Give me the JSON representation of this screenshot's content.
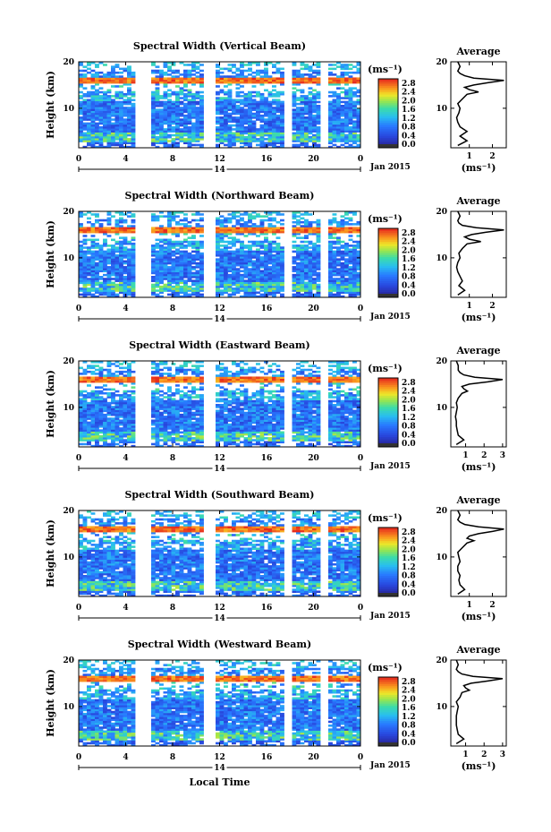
{
  "chart_data": [
    {
      "type": "heatmap",
      "title": "Spectral Width (Vertical Beam)",
      "ylabel": "Height (km)",
      "x_ticks": [
        "0",
        "4",
        "8",
        "12",
        "16",
        "20",
        "0"
      ],
      "y_ticks": [
        "10",
        "20"
      ],
      "date_label": "14",
      "month_label": "Jan 2015",
      "xlim": [
        0,
        24
      ],
      "ylim": [
        1.5,
        20
      ],
      "colorbar": {
        "unit": "(ms⁻¹)",
        "ticks": [
          "0.0",
          "0.4",
          "0.8",
          "1.2",
          "1.6",
          "2.0",
          "2.4",
          "2.8"
        ],
        "range": [
          0,
          3.0
        ]
      },
      "data_gaps_hours": [
        [
          4.9,
          6.2
        ],
        [
          10.8,
          11.2
        ],
        [
          11.4,
          11.7
        ],
        [
          17.6,
          18.3
        ],
        [
          19.8,
          20.05
        ],
        [
          20.6,
          21.1
        ]
      ],
      "average_profile": {
        "title": "Average",
        "xlabel": "(ms⁻¹)",
        "x_ticks": [
          "1",
          "2"
        ],
        "y_ticks": [
          "10",
          "20"
        ],
        "xlim": [
          0.2,
          2.6
        ],
        "height_km": [
          2,
          3,
          4,
          5,
          6,
          7,
          8,
          9,
          10,
          11,
          12,
          13,
          13.5,
          14,
          14.5,
          15,
          15.5,
          16,
          16.5,
          17,
          17.5,
          18,
          19,
          20
        ],
        "width": [
          0.5,
          0.9,
          0.6,
          0.9,
          0.6,
          0.5,
          0.45,
          0.55,
          0.6,
          0.5,
          0.7,
          0.9,
          1.4,
          1.0,
          0.8,
          1.2,
          1.8,
          2.5,
          1.2,
          0.8,
          0.6,
          0.5,
          0.6,
          0.5
        ]
      }
    },
    {
      "type": "heatmap",
      "title": "Spectral Width (Northward Beam)",
      "ylabel": "Height (km)",
      "x_ticks": [
        "0",
        "4",
        "8",
        "12",
        "16",
        "20",
        "0"
      ],
      "y_ticks": [
        "10",
        "20"
      ],
      "date_label": "14",
      "month_label": "Jan 2015",
      "xlim": [
        0,
        24
      ],
      "ylim": [
        1.5,
        20
      ],
      "colorbar": {
        "unit": "(ms⁻¹)",
        "ticks": [
          "0.0",
          "0.4",
          "0.8",
          "1.2",
          "1.6",
          "2.0",
          "2.4",
          "2.8"
        ],
        "range": [
          0,
          3.0
        ]
      },
      "data_gaps_hours": [
        [
          4.9,
          6.2
        ],
        [
          10.8,
          11.2
        ],
        [
          11.4,
          11.7
        ],
        [
          17.6,
          18.3
        ],
        [
          19.8,
          20.05
        ],
        [
          20.6,
          21.1
        ]
      ],
      "average_profile": {
        "title": "Average",
        "xlabel": "(ms⁻¹)",
        "x_ticks": [
          "1",
          "2"
        ],
        "y_ticks": [
          "10",
          "20"
        ],
        "xlim": [
          0.2,
          2.6
        ],
        "height_km": [
          2,
          3,
          4,
          5,
          6,
          7,
          8,
          9,
          10,
          11,
          12,
          13,
          13.5,
          14,
          14.5,
          15,
          15.5,
          16,
          16.5,
          17,
          17.5,
          18,
          19,
          20
        ],
        "width": [
          0.5,
          0.8,
          0.55,
          0.7,
          0.6,
          0.5,
          0.45,
          0.5,
          0.6,
          0.55,
          0.7,
          0.9,
          1.5,
          1.0,
          0.8,
          1.1,
          1.7,
          2.5,
          1.3,
          0.7,
          0.55,
          0.5,
          0.6,
          0.5
        ]
      }
    },
    {
      "type": "heatmap",
      "title": "Spectral Width (Eastward Beam)",
      "ylabel": "Height (km)",
      "x_ticks": [
        "0",
        "4",
        "8",
        "12",
        "16",
        "20",
        "0"
      ],
      "y_ticks": [
        "10",
        "20"
      ],
      "date_label": "14",
      "month_label": "Jan 2015",
      "xlim": [
        0,
        24
      ],
      "ylim": [
        1.5,
        20
      ],
      "colorbar": {
        "unit": "(ms⁻¹)",
        "ticks": [
          "0.0",
          "0.4",
          "0.8",
          "1.2",
          "1.6",
          "2.0",
          "2.4",
          "2.8"
        ],
        "range": [
          0,
          3.0
        ]
      },
      "data_gaps_hours": [
        [
          4.9,
          6.2
        ],
        [
          10.8,
          11.2
        ],
        [
          11.4,
          11.7
        ],
        [
          17.6,
          18.3
        ],
        [
          19.8,
          20.05
        ],
        [
          20.6,
          21.1
        ]
      ],
      "average_profile": {
        "title": "Average",
        "xlabel": "(ms⁻¹)",
        "x_ticks": [
          "1",
          "2",
          "3"
        ],
        "y_ticks": [
          "10",
          "20"
        ],
        "xlim": [
          0.2,
          3.2
        ],
        "height_km": [
          2,
          3,
          4,
          5,
          6,
          7,
          8,
          9,
          10,
          11,
          12,
          13,
          13.5,
          14,
          14.5,
          15,
          15.5,
          16,
          16.5,
          17,
          17.5,
          18,
          19,
          20
        ],
        "width": [
          0.5,
          0.9,
          0.6,
          0.55,
          0.5,
          0.5,
          0.45,
          0.5,
          0.55,
          0.5,
          0.6,
          0.8,
          1.1,
          0.9,
          0.8,
          1.2,
          2.2,
          3.0,
          1.5,
          0.9,
          0.7,
          0.6,
          0.6,
          0.5
        ]
      }
    },
    {
      "type": "heatmap",
      "title": "Spectral Width (Southward Beam)",
      "ylabel": "Height (km)",
      "x_ticks": [
        "0",
        "4",
        "8",
        "12",
        "16",
        "20",
        "0"
      ],
      "y_ticks": [
        "10",
        "20"
      ],
      "date_label": "14",
      "month_label": "Jan 2015",
      "xlim": [
        0,
        24
      ],
      "ylim": [
        1.5,
        20
      ],
      "colorbar": {
        "unit": "(ms⁻¹)",
        "ticks": [
          "0.0",
          "0.4",
          "0.8",
          "1.2",
          "1.6",
          "2.0",
          "2.4",
          "2.8"
        ],
        "range": [
          0,
          3.0
        ]
      },
      "data_gaps_hours": [
        [
          4.9,
          6.2
        ],
        [
          10.8,
          11.2
        ],
        [
          11.4,
          11.7
        ],
        [
          17.6,
          18.3
        ],
        [
          19.8,
          20.05
        ],
        [
          20.6,
          21.1
        ]
      ],
      "average_profile": {
        "title": "Average",
        "xlabel": "(ms⁻¹)",
        "x_ticks": [
          "1",
          "2"
        ],
        "y_ticks": [
          "10",
          "20"
        ],
        "xlim": [
          0.2,
          2.6
        ],
        "height_km": [
          2,
          3,
          4,
          5,
          6,
          7,
          8,
          9,
          10,
          11,
          12,
          13,
          13.5,
          14,
          14.5,
          15,
          15.5,
          16,
          16.5,
          17,
          17.5,
          18,
          19,
          20
        ],
        "width": [
          0.5,
          0.8,
          0.6,
          0.55,
          0.6,
          0.5,
          0.5,
          0.6,
          0.55,
          0.5,
          0.7,
          0.9,
          1.2,
          0.9,
          1.0,
          1.4,
          2.0,
          2.5,
          1.4,
          0.8,
          0.6,
          0.5,
          0.6,
          0.5
        ]
      }
    },
    {
      "type": "heatmap",
      "title": "Spectral Width (Westward Beam)",
      "ylabel": "Height (km)",
      "x_ticks": [
        "0",
        "4",
        "8",
        "12",
        "16",
        "20",
        "0"
      ],
      "y_ticks": [
        "10",
        "20"
      ],
      "date_label": "14",
      "month_label": "Jan 2015",
      "xlabel": "Local Time",
      "xlim": [
        0,
        24
      ],
      "ylim": [
        1.5,
        20
      ],
      "colorbar": {
        "unit": "(ms⁻¹)",
        "ticks": [
          "0.0",
          "0.4",
          "0.8",
          "1.2",
          "1.6",
          "2.0",
          "2.4",
          "2.8"
        ],
        "range": [
          0,
          3.0
        ]
      },
      "data_gaps_hours": [
        [
          4.9,
          6.2
        ],
        [
          10.8,
          11.2
        ],
        [
          11.4,
          11.7
        ],
        [
          17.6,
          18.3
        ],
        [
          19.8,
          20.05
        ],
        [
          20.6,
          21.1
        ]
      ],
      "average_profile": {
        "title": "Average",
        "xlabel": "(ms⁻¹)",
        "x_ticks": [
          "1",
          "2",
          "3"
        ],
        "y_ticks": [
          "10",
          "20"
        ],
        "xlim": [
          0.2,
          3.2
        ],
        "height_km": [
          2,
          3,
          4,
          5,
          6,
          7,
          8,
          9,
          10,
          11,
          12,
          13,
          13.5,
          14,
          14.5,
          15,
          15.5,
          16,
          16.5,
          17,
          17.5,
          18,
          19,
          20
        ],
        "width": [
          0.5,
          0.9,
          0.6,
          0.55,
          0.5,
          0.5,
          0.5,
          0.55,
          0.6,
          0.5,
          0.7,
          0.8,
          1.2,
          1.0,
          0.9,
          1.3,
          2.2,
          3.0,
          1.4,
          0.8,
          0.6,
          0.5,
          0.6,
          0.5
        ]
      }
    }
  ]
}
